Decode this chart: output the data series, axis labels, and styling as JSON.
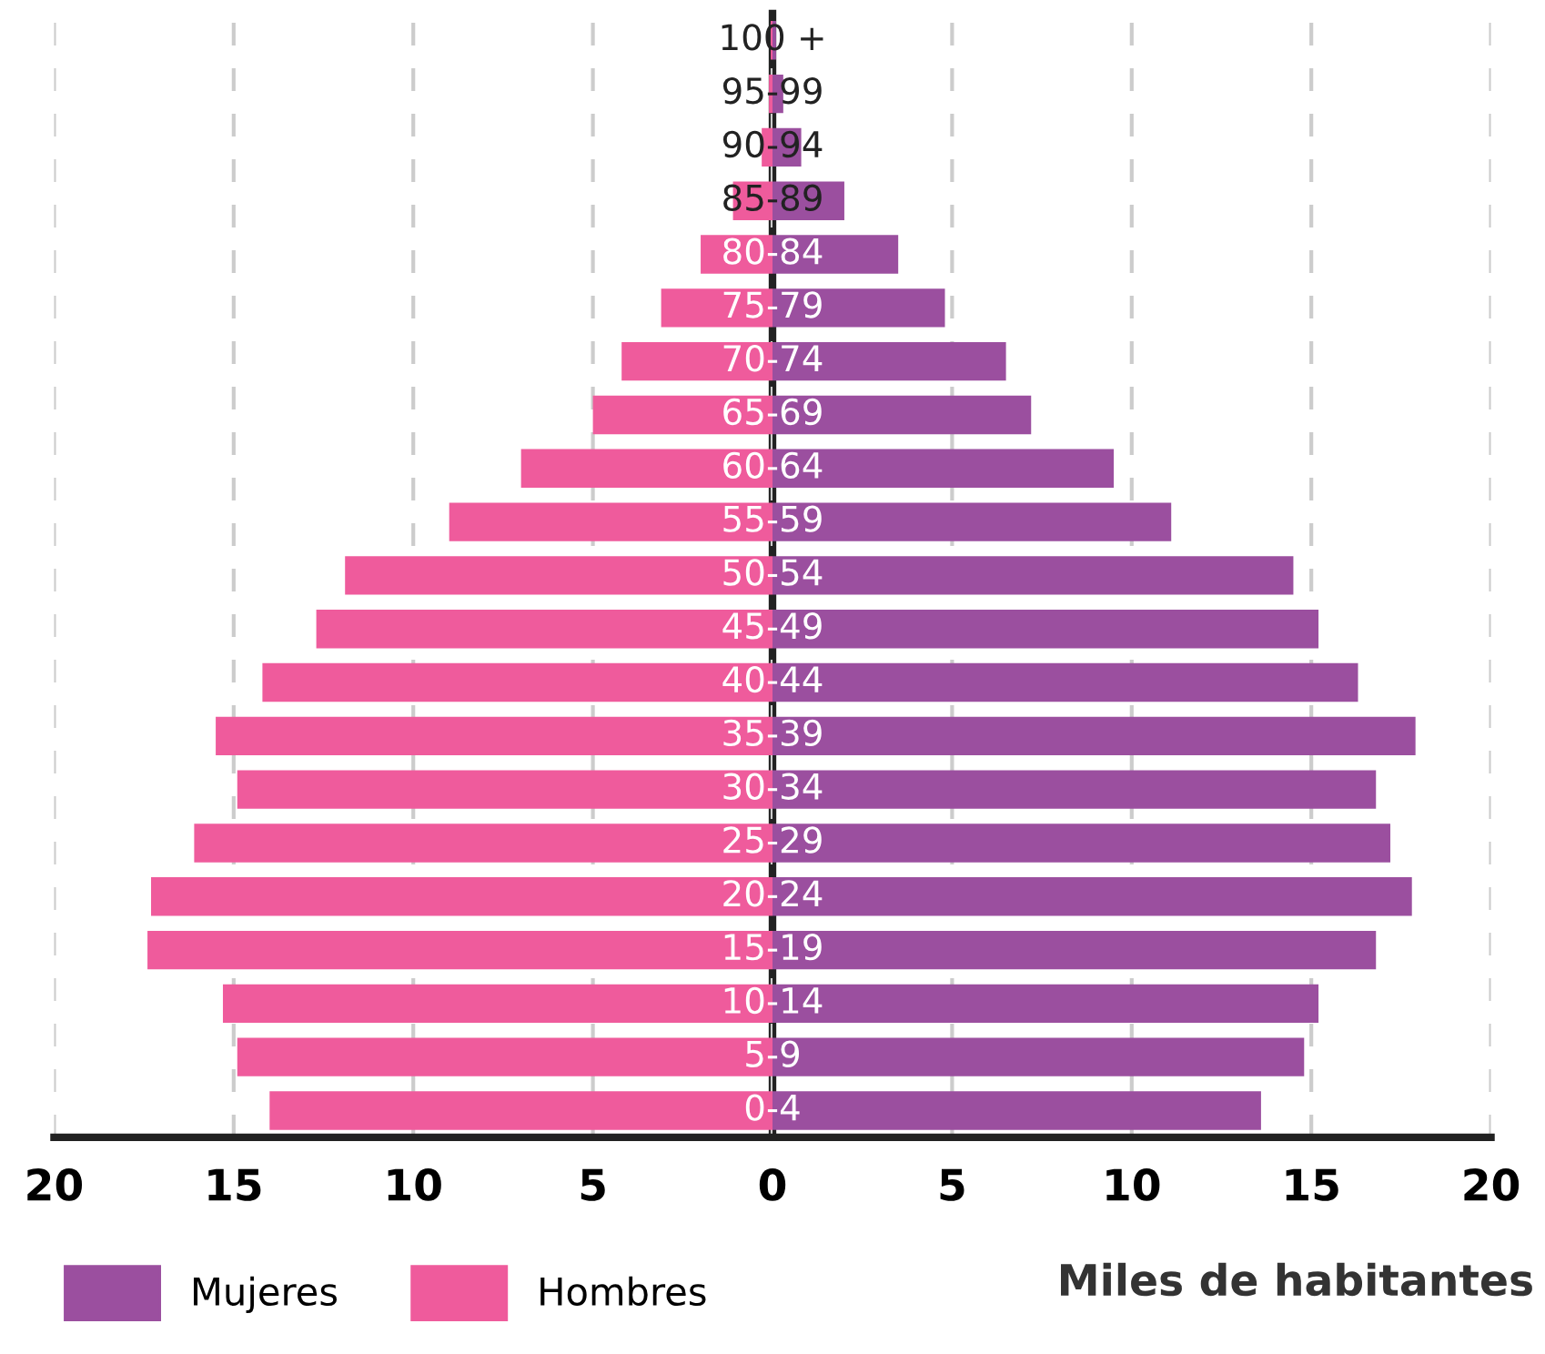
{
  "chart_data": [
    {
      "type": "bar",
      "orientation": "horizontal",
      "categories": [
        null,
        null,
        null,
        null,
        null,
        null,
        null,
        null,
        null,
        null,
        null,
        null,
        null,
        null,
        null,
        null,
        null,
        null,
        null,
        null,
        null
      ],
      "series": [
        {
          "name": "Hombres",
          "color": "#ef5b9c",
          "values": [
            0.05,
            0.1,
            0.3,
            1.1,
            2.0,
            3.1,
            4.2,
            5.0,
            7.0,
            9.0,
            11.9,
            12.7,
            14.2,
            15.5,
            14.9,
            16.1,
            17.3,
            17.4,
            15.3,
            14.9,
            14.0
          ]
        }
      ],
      "xlim": [
        20,
        0
      ],
      "xticks": [
        20,
        15,
        10,
        5,
        {
          "value": 0,
          "label": null
        }
      ],
      "grid": "x",
      "legend": "bottom right",
      "tick_labels": "x"
    },
    {
      "type": "bar",
      "orientation": "horizontal",
      "xlabel": "Miles de habitantes",
      "categories": [
        "100 +",
        "95-99",
        "90-94",
        "85-89",
        "80-84",
        "75-79",
        "70-74",
        "65-69",
        "60-64",
        "55-59",
        "50-54",
        "45-49",
        "40-44",
        "35-39",
        "30-34",
        "25-29",
        "20-24",
        "15-19",
        "10-14",
        "5-9",
        "0-4"
      ],
      "series": [
        {
          "name": "Mujeres",
          "color": "#9b4f9f",
          "values": [
            0.1,
            0.3,
            0.8,
            2.0,
            3.5,
            4.8,
            6.5,
            7.2,
            9.5,
            11.1,
            14.5,
            15.2,
            16.3,
            17.9,
            16.8,
            17.2,
            17.8,
            16.8,
            15.2,
            14.8,
            13.6
          ]
        }
      ],
      "xlim": [
        0,
        20
      ],
      "xticks": [
        0,
        5,
        10,
        15,
        20
      ],
      "grid": "x",
      "legend": "bottom left"
    }
  ]
}
